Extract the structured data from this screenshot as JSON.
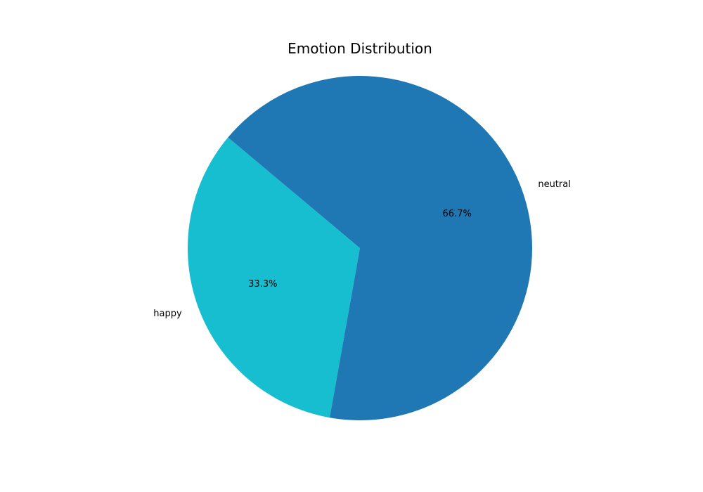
{
  "chart_data": {
    "type": "pie",
    "title": "Emotion Distribution",
    "labels": [
      "happy",
      "neutral"
    ],
    "values": [
      33.3,
      66.7
    ],
    "percent_labels": [
      "33.3%",
      "66.7%"
    ],
    "colors": [
      "#17becf",
      "#1f77b4"
    ],
    "start_angle_deg": 140,
    "direction": "counterclockwise"
  }
}
